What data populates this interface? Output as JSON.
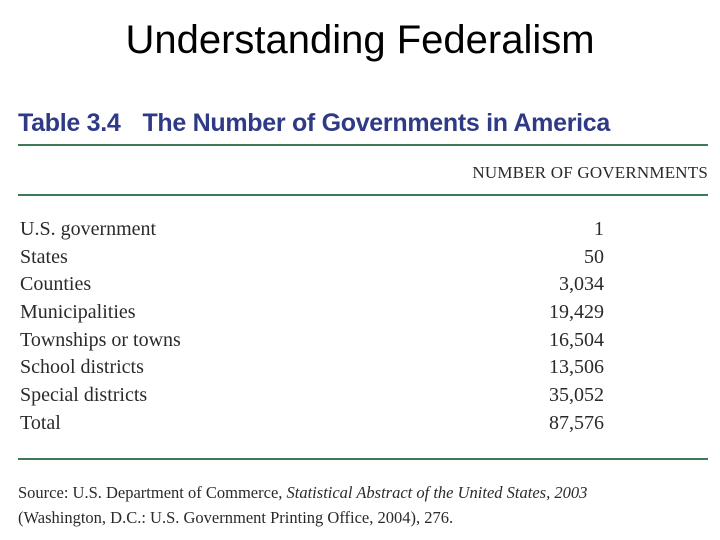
{
  "slide": {
    "title": "Understanding Federalism"
  },
  "table": {
    "number": "Table 3.4",
    "title": "The Number of Governments in America",
    "column_header": "NUMBER OF GOVERNMENTS",
    "rows": [
      {
        "label": "U.S. government",
        "value": "1"
      },
      {
        "label": "States",
        "value": "50"
      },
      {
        "label": "Counties",
        "value": "3,034"
      },
      {
        "label": "Municipalities",
        "value": "19,429"
      },
      {
        "label": "Townships or towns",
        "value": "16,504"
      },
      {
        "label": "School districts",
        "value": "13,506"
      },
      {
        "label": "Special districts",
        "value": "35,052"
      },
      {
        "label": "Total",
        "value": "87,576"
      }
    ],
    "source": {
      "prefix": "Source: U.S. Department of Commerce, ",
      "publication": "Statistical Abstract of the United States, 2003",
      "line2": "(Washington, D.C.: U.S. Government Printing Office, 2004), 276."
    }
  },
  "colors": {
    "caption": "#2f3a86",
    "rule": "#3f7a56",
    "text": "#2a2a2a"
  }
}
